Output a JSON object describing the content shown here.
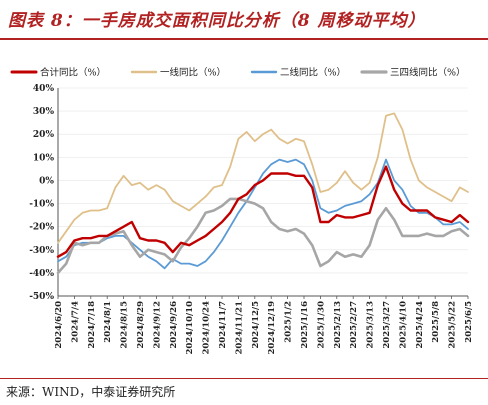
{
  "title": "图表 8：一手房成交面积同比分析（8 周移动平均）",
  "source": "来源：WIND，中泰证券研究所",
  "chart_data": {
    "type": "line",
    "ylim": [
      -50,
      40
    ],
    "yticks": [
      40,
      30,
      20,
      10,
      0,
      -10,
      -20,
      -30,
      -40,
      -50
    ],
    "ytick_labels": [
      "40%",
      "30%",
      "20%",
      "10%",
      "0%",
      "-10%",
      "-20%",
      "-30%",
      "-40%",
      "-50%"
    ],
    "x_tick_labels": [
      "2024/6/20",
      "2024/7/4",
      "2024/7/18",
      "2024/8/1",
      "2024/8/15",
      "2024/8/29",
      "2024/9/12",
      "2024/9/26",
      "2024/10/10",
      "2024/10/24",
      "2024/11/7",
      "2024/11/21",
      "2024/12/5",
      "2024/12/19",
      "2025/1/2",
      "2025/1/16",
      "2025/1/30",
      "2025/2/13",
      "2025/2/27",
      "2025/3/13",
      "2025/3/27",
      "2025/4/10",
      "2025/4/24",
      "2025/5/8",
      "2025/5/22",
      "2025/6/5"
    ],
    "x_count": 51,
    "series": [
      {
        "name": "合计同比（%）",
        "color": "#c00000",
        "width": 2.4,
        "values": [
          -33,
          -31,
          -26,
          -25,
          -25,
          -24,
          -24,
          -22,
          -20,
          -18,
          -25,
          -26,
          -26,
          -27,
          -31,
          -27,
          -28,
          -26,
          -24,
          -21,
          -18,
          -14,
          -8,
          -6,
          -2,
          0,
          3,
          3,
          3,
          2,
          2,
          -3,
          -18,
          -18,
          -15,
          -16,
          -16,
          -15,
          -14,
          -2,
          6,
          -4,
          -10,
          -13,
          -13,
          -13,
          -16,
          -17,
          -18,
          -15,
          -18
        ]
      },
      {
        "name": "一线同比（%）",
        "color": "#e0c08a",
        "width": 1.8,
        "values": [
          -27,
          -22,
          -17,
          -14,
          -13,
          -13,
          -12,
          -3,
          2,
          -2,
          -1,
          -4,
          -2,
          -4,
          -9,
          -11,
          -13,
          -10,
          -7,
          -3,
          -2,
          6,
          18,
          21,
          17,
          20,
          22,
          18,
          16,
          18,
          17,
          7,
          -5,
          -4,
          -1,
          4,
          -1,
          -4,
          -1,
          10,
          28,
          29,
          22,
          9,
          0,
          -3,
          -5,
          -7,
          -9,
          -3,
          -5
        ]
      },
      {
        "name": "二线同比（%）",
        "color": "#5b9bd5",
        "width": 1.8,
        "values": [
          -35,
          -33,
          -28,
          -27,
          -27,
          -27,
          -25,
          -24,
          -24,
          -27,
          -30,
          -33,
          -35,
          -38,
          -34,
          -36,
          -36,
          -37,
          -35,
          -31,
          -26,
          -20,
          -14,
          -9,
          -3,
          3,
          7,
          9,
          8,
          9,
          7,
          0,
          -12,
          -14,
          -13,
          -11,
          -10,
          -9,
          -6,
          -1,
          9,
          0,
          -4,
          -11,
          -14,
          -14,
          -16,
          -19,
          -19,
          -18,
          -21
        ]
      },
      {
        "name": "三四线同比（%）",
        "color": "#a6a6a6",
        "width": 2.6,
        "values": [
          -40,
          -36,
          -27,
          -28,
          -27,
          -27,
          -24,
          -23,
          -22,
          -28,
          -33,
          -30,
          -31,
          -32,
          -35,
          -29,
          -25,
          -20,
          -14,
          -13,
          -11,
          -8,
          -8,
          -9,
          -10,
          -12,
          -18,
          -21,
          -22,
          -21,
          -23,
          -28,
          -37,
          -35,
          -31,
          -33,
          -32,
          -33,
          -28,
          -17,
          -12,
          -17,
          -24,
          -24,
          -24,
          -23,
          -24,
          -24,
          -22,
          -21,
          -24
        ]
      }
    ]
  }
}
